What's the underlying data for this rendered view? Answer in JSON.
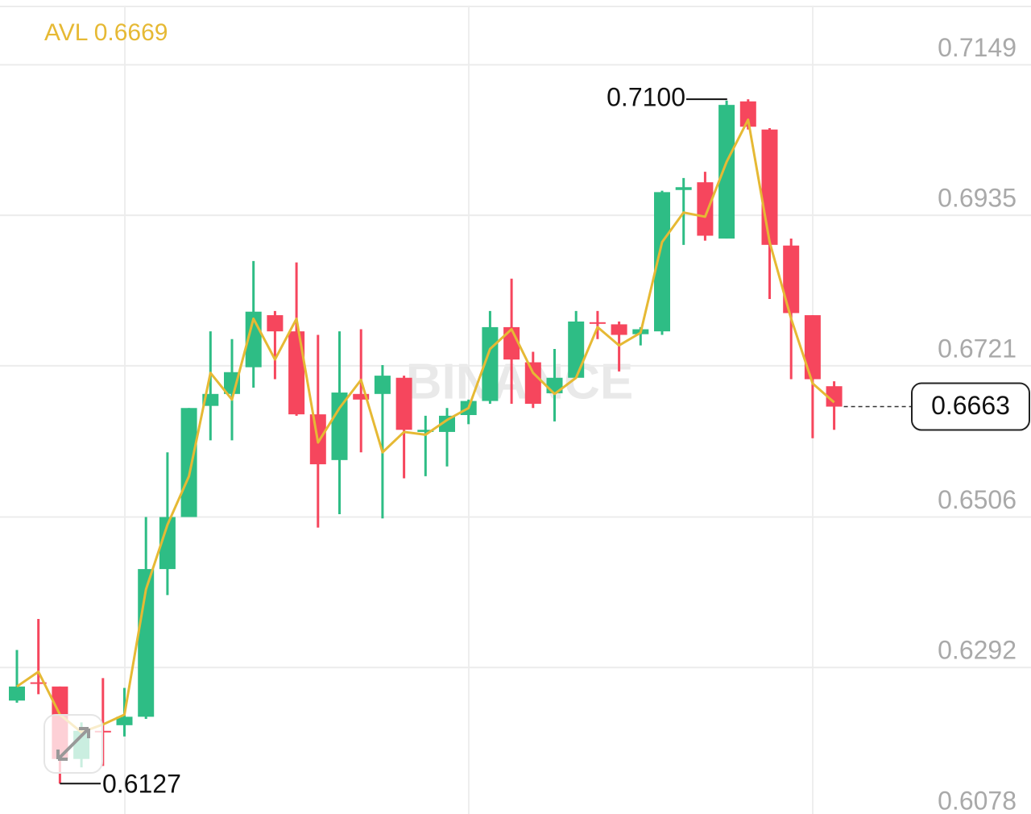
{
  "chart_data": {
    "type": "candlestick",
    "watermark": "BINANCE",
    "up_color": "#2ebd85",
    "down_color": "#f6465d",
    "ylim": [
      0.6078,
      0.7232
    ],
    "yticks": [
      0.7149,
      0.6935,
      0.6721,
      0.6506,
      0.6292,
      0.6078
    ],
    "grid": true,
    "open": [
      0.6245,
      0.6271,
      0.6265,
      0.6162,
      0.6202,
      0.621,
      0.6222,
      0.6432,
      0.6506,
      0.6664,
      0.6681,
      0.6719,
      0.6793,
      0.677,
      0.6652,
      0.6587,
      0.6681,
      0.6681,
      0.6704,
      0.6627,
      0.6627,
      0.6651,
      0.6671,
      0.6776,
      0.6726,
      0.6682,
      0.6704,
      0.6783,
      0.678,
      0.6766,
      0.677,
      0.6971,
      0.6982,
      0.6902,
      0.7097,
      0.7057,
      0.6892,
      0.6793,
      0.6692
    ],
    "close": [
      0.6265,
      0.6269,
      0.6162,
      0.6202,
      0.62,
      0.6222,
      0.6432,
      0.6506,
      0.6661,
      0.6681,
      0.6712,
      0.6798,
      0.677,
      0.6652,
      0.6581,
      0.6683,
      0.6673,
      0.6707,
      0.663,
      0.663,
      0.665,
      0.6671,
      0.6776,
      0.673,
      0.6667,
      0.6704,
      0.6784,
      0.6781,
      0.6765,
      0.6773,
      0.6968,
      0.6975,
      0.6906,
      0.7092,
      0.7061,
      0.6893,
      0.6796,
      0.6702,
      0.6663
    ],
    "high": [
      0.6317,
      0.6361,
      0.6265,
      0.6214,
      0.6277,
      0.6263,
      0.6506,
      0.6598,
      0.6661,
      0.677,
      0.6759,
      0.687,
      0.6799,
      0.6868,
      0.6765,
      0.677,
      0.6773,
      0.6722,
      0.6707,
      0.665,
      0.6661,
      0.6673,
      0.6799,
      0.6845,
      0.6741,
      0.6745,
      0.6799,
      0.6799,
      0.6784,
      0.6776,
      0.697,
      0.6988,
      0.6997,
      0.7098,
      0.71,
      0.7059,
      0.6902,
      0.6793,
      0.6699
    ],
    "low": [
      0.6242,
      0.6254,
      0.6127,
      0.615,
      0.6152,
      0.6194,
      0.6219,
      0.6395,
      0.6506,
      0.6615,
      0.6615,
      0.669,
      0.6702,
      0.665,
      0.6491,
      0.651,
      0.6598,
      0.6504,
      0.6561,
      0.6564,
      0.6578,
      0.6638,
      0.6667,
      0.6667,
      0.6661,
      0.6642,
      0.6704,
      0.6759,
      0.6713,
      0.675,
      0.6765,
      0.6893,
      0.6899,
      0.6902,
      0.7057,
      0.6816,
      0.6702,
      0.6618,
      0.663
    ],
    "series": [
      {
        "name": "AVL",
        "color": "#e6b934",
        "values": [
          0.6265,
          0.6286,
          0.6225,
          0.62,
          0.6211,
          0.6225,
          0.6403,
          0.6495,
          0.6564,
          0.6711,
          0.6673,
          0.6788,
          0.673,
          0.6788,
          0.6612,
          0.6661,
          0.6701,
          0.6598,
          0.6627,
          0.6623,
          0.6644,
          0.6661,
          0.6745,
          0.6773,
          0.6711,
          0.6681,
          0.6704,
          0.6776,
          0.675,
          0.6768,
          0.6897,
          0.6939,
          0.6933,
          0.7011,
          0.7071,
          0.6897,
          0.6788,
          0.6696,
          0.6669
        ]
      }
    ],
    "avl_value": 0.6669,
    "max_label": {
      "value": 0.71,
      "label": "0.7100"
    },
    "min_label": 0.6127,
    "last_price": 0.6663
  }
}
